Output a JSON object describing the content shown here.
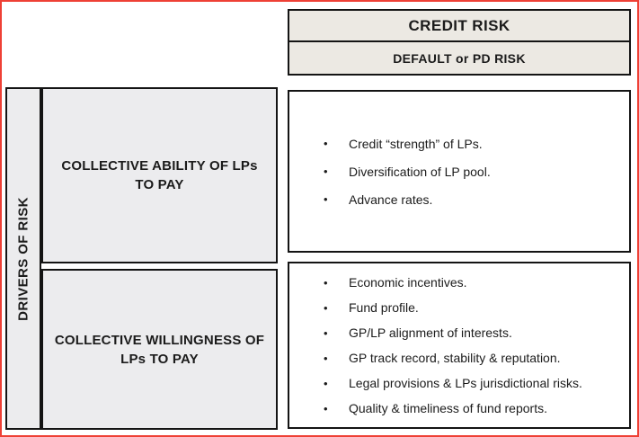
{
  "colors": {
    "outer_border": "#ee4035",
    "box_border": "#141414",
    "header_fill": "#ece9e3",
    "label_fill": "#ececee",
    "content_fill": "#ffffff",
    "page_bg": "#ffffff",
    "text": "#1b1b1b"
  },
  "header": {
    "title": "CREDIT RISK",
    "subtitle": "DEFAULT or PD RISK"
  },
  "axis": {
    "label": "DRIVERS OF RISK"
  },
  "bullet_glyph": "•",
  "rows": [
    {
      "label": "COLLECTIVE ABILITY OF LPs TO PAY",
      "lines": [
        "COLLECTIVE ABILITY OF LPs",
        "TO PAY"
      ],
      "bullets": [
        "Credit “strength” of LPs.",
        "Diversification of LP pool.",
        "Advance rates."
      ]
    },
    {
      "label": "COLLECTIVE WILLINGNESS OF LPs TO PAY",
      "lines": [
        "COLLECTIVE WILLINGNESS OF",
        "LPs TO PAY"
      ],
      "bullets": [
        "Economic incentives.",
        "Fund profile.",
        "GP/LP alignment of interests.",
        "GP track record, stability & reputation.",
        "Legal provisions & LPs jurisdictional risks.",
        "Quality & timeliness of fund reports."
      ]
    }
  ]
}
